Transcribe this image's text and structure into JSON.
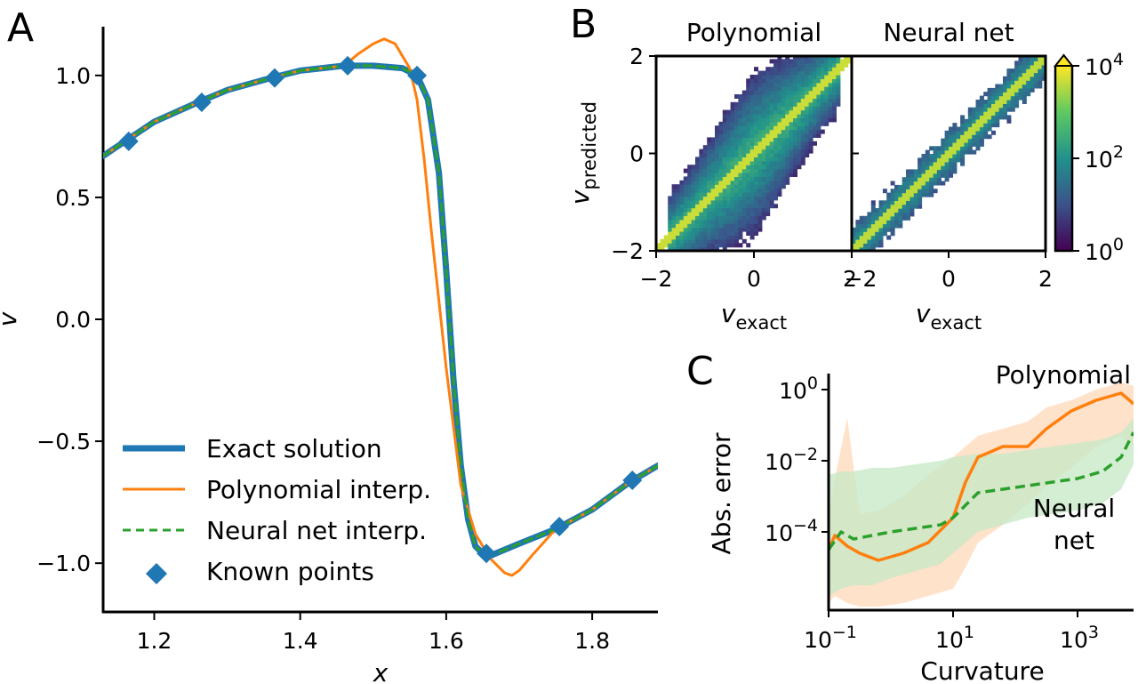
{
  "panels": {
    "a": "A",
    "b": "B",
    "c": "C"
  },
  "colors": {
    "exact": "#1f77b4",
    "poly": "#ff7f0e",
    "nn": "#2ca02c",
    "points": "#1f77b4",
    "poly_band": "#ffd8b8",
    "nn_band": "#c6e8c6"
  },
  "chart_data": [
    {
      "id": "A",
      "type": "line",
      "xlabel": "x",
      "ylabel": "v",
      "xlim": [
        1.13,
        1.89
      ],
      "ylim": [
        -1.2,
        1.2
      ],
      "xticks": [
        1.2,
        1.4,
        1.6,
        1.8
      ],
      "xtick_labels": [
        "1.2",
        "1.4",
        "1.6",
        "1.8"
      ],
      "yticks": [
        1.0,
        0.5,
        0.0,
        -0.5,
        -1.0
      ],
      "ytick_labels": [
        "1.0",
        "0.5",
        "0.0",
        "−0.5",
        "−1.0"
      ],
      "legend_position": "lower-left",
      "series": [
        {
          "name": "Exact solution",
          "style": "solid-thick",
          "x": [
            1.13,
            1.16,
            1.2,
            1.26,
            1.3,
            1.36,
            1.4,
            1.46,
            1.5,
            1.54,
            1.56,
            1.575,
            1.59,
            1.6,
            1.61,
            1.62,
            1.63,
            1.64,
            1.65,
            1.66,
            1.7,
            1.75,
            1.8,
            1.85,
            1.89
          ],
          "y": [
            0.67,
            0.73,
            0.81,
            0.89,
            0.94,
            0.99,
            1.02,
            1.04,
            1.04,
            1.03,
            1.0,
            0.9,
            0.6,
            0.2,
            -0.25,
            -0.6,
            -0.82,
            -0.93,
            -0.96,
            -0.97,
            -0.92,
            -0.86,
            -0.78,
            -0.67,
            -0.6
          ]
        },
        {
          "name": "Polynomial interp.",
          "style": "solid-thin",
          "x": [
            1.13,
            1.16,
            1.2,
            1.26,
            1.3,
            1.36,
            1.4,
            1.46,
            1.48,
            1.5,
            1.515,
            1.53,
            1.55,
            1.56,
            1.57,
            1.58,
            1.6,
            1.62,
            1.64,
            1.66,
            1.68,
            1.69,
            1.7,
            1.72,
            1.75,
            1.8,
            1.85,
            1.89
          ],
          "y": [
            0.67,
            0.73,
            0.81,
            0.89,
            0.94,
            0.99,
            1.02,
            1.04,
            1.09,
            1.13,
            1.15,
            1.13,
            1.03,
            0.9,
            0.65,
            0.35,
            -0.2,
            -0.68,
            -0.88,
            -0.98,
            -1.04,
            -1.05,
            -1.03,
            -0.96,
            -0.86,
            -0.78,
            -0.67,
            -0.6
          ]
        },
        {
          "name": "Neural net interp.",
          "style": "dashed",
          "x": [
            1.13,
            1.16,
            1.2,
            1.26,
            1.3,
            1.36,
            1.4,
            1.46,
            1.5,
            1.54,
            1.56,
            1.575,
            1.59,
            1.6,
            1.61,
            1.62,
            1.63,
            1.64,
            1.65,
            1.66,
            1.7,
            1.75,
            1.8,
            1.85,
            1.89
          ],
          "y": [
            0.67,
            0.73,
            0.81,
            0.89,
            0.94,
            0.99,
            1.02,
            1.04,
            1.04,
            1.03,
            1.0,
            0.9,
            0.6,
            0.2,
            -0.25,
            -0.6,
            -0.82,
            -0.93,
            -0.96,
            -0.97,
            -0.92,
            -0.86,
            -0.78,
            -0.67,
            -0.6
          ]
        },
        {
          "name": "Known points",
          "style": "markers",
          "x": [
            1.165,
            1.265,
            1.365,
            1.465,
            1.56,
            1.655,
            1.755,
            1.855
          ],
          "y": [
            0.73,
            0.89,
            0.99,
            1.04,
            1.0,
            -0.96,
            -0.85,
            -0.66
          ]
        }
      ]
    },
    {
      "id": "B",
      "type": "heatmap",
      "subplots": [
        {
          "title": "Polynomial",
          "spread": "wide"
        },
        {
          "title": "Neural net",
          "spread": "narrow"
        }
      ],
      "xlabel_main": "v",
      "xlabel_sub": "exact",
      "ylabel_main": "v",
      "ylabel_sub": "predicted",
      "xlim": [
        -2,
        2
      ],
      "ylim": [
        -2,
        2
      ],
      "xticks": [
        -2,
        0,
        2
      ],
      "xtick_labels": [
        "−2",
        "0",
        "2"
      ],
      "yticks": [
        2,
        0,
        -2
      ],
      "ytick_labels": [
        "2",
        "0",
        "−2"
      ],
      "colorbar": {
        "scale": "log",
        "range": [
          1,
          10000
        ],
        "ticks": [
          {
            "base": "10",
            "exp": "4",
            "value": 10000
          },
          {
            "base": "10",
            "exp": "2",
            "value": 100
          },
          {
            "base": "10",
            "exp": "0",
            "value": 1
          }
        ],
        "colormap": [
          "#440154",
          "#3b528b",
          "#21918c",
          "#5ec962",
          "#fde725"
        ]
      }
    },
    {
      "id": "C",
      "type": "line",
      "xlabel": "Curvature",
      "ylabel": "Abs. error",
      "xscale": "log",
      "yscale": "log",
      "xlim_log10": [
        -1,
        3.9
      ],
      "ylim_log10": [
        -6.2,
        0.45
      ],
      "xticks": [
        {
          "base": "10",
          "exp": "−1",
          "log10": -1
        },
        {
          "base": "10",
          "exp": "1",
          "log10": 1
        },
        {
          "base": "10",
          "exp": "3",
          "log10": 3
        }
      ],
      "yticks": [
        {
          "base": "10",
          "exp": "0",
          "log10": 0
        },
        {
          "base": "10",
          "exp": "−2",
          "log10": -2
        },
        {
          "base": "10",
          "exp": "−4",
          "log10": -4
        }
      ],
      "series": [
        {
          "name": "Polynomial",
          "label_lines": [
            "Polynomial"
          ],
          "style": "solid",
          "log10_x": [
            -1,
            -0.9,
            -0.7,
            -0.5,
            -0.2,
            0.2,
            0.6,
            1.0,
            1.2,
            1.4,
            1.8,
            2.2,
            2.5,
            2.9,
            3.3,
            3.7,
            3.9
          ],
          "log10_y": [
            -4.5,
            -4.1,
            -4.4,
            -4.6,
            -4.8,
            -4.6,
            -4.3,
            -3.6,
            -2.6,
            -1.9,
            -1.6,
            -1.6,
            -1.1,
            -0.6,
            -0.3,
            -0.1,
            -0.4
          ],
          "band_upper_log10": [
            -3.5,
            -2.5,
            -0.8,
            -3.5,
            -3.4,
            -3.0,
            -2.4,
            -1.9,
            -1.6,
            -1.3,
            -1.1,
            -0.9,
            -0.5,
            -0.3,
            0.0,
            0.2,
            0.1
          ],
          "band_lower_log10": [
            -6.0,
            -5.8,
            -6.0,
            -6.1,
            -6.1,
            -6.0,
            -5.8,
            -5.6,
            -5.0,
            -4.3,
            -3.8,
            -3.2,
            -2.7,
            -2.2,
            -1.6,
            -1.3,
            -1.6
          ]
        },
        {
          "name": "Neural net",
          "label_lines": [
            "Neural",
            "net"
          ],
          "style": "dashed",
          "log10_x": [
            -1,
            -0.8,
            -0.6,
            -0.3,
            0,
            0.4,
            0.8,
            1.0,
            1.4,
            1.8,
            2.2,
            2.6,
            3.0,
            3.4,
            3.7,
            3.9
          ],
          "log10_y": [
            -4.5,
            -4.0,
            -4.2,
            -4.1,
            -4.0,
            -3.9,
            -3.8,
            -3.6,
            -2.9,
            -2.8,
            -2.7,
            -2.6,
            -2.5,
            -2.3,
            -1.9,
            -1.2
          ],
          "band_upper_log10": [
            -2.4,
            -2.3,
            -2.3,
            -2.2,
            -2.2,
            -2.1,
            -2.0,
            -1.9,
            -1.8,
            -1.8,
            -1.7,
            -1.6,
            -1.5,
            -1.4,
            -1.2,
            -0.8
          ],
          "band_lower_log10": [
            -5.8,
            -5.6,
            -5.5,
            -5.5,
            -5.3,
            -5.1,
            -4.9,
            -4.6,
            -4.0,
            -3.8,
            -3.6,
            -3.5,
            -3.4,
            -3.2,
            -2.8,
            -2.1
          ]
        }
      ]
    }
  ]
}
